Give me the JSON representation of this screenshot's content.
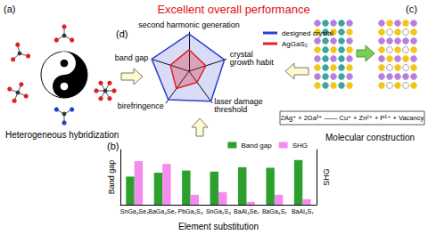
{
  "title": "Excellent overall performance",
  "panels": {
    "a": {
      "letter": "(a)",
      "caption": "Heterogeneous hybridization"
    },
    "b": {
      "letter": "(b)",
      "caption": "Element substitution"
    },
    "c": {
      "letter": "(c)",
      "caption": "Molecular construction",
      "equation": "2Ag⁺ + 2Ga³⁺ —— Cu⁺ + Zn²⁺ + P⁵⁺ + Vacancy"
    },
    "d": {
      "letter": "(d)"
    }
  },
  "chart_data": [
    {
      "type": "bar",
      "categories": [
        "SnGa₄Se₇",
        "BaGa₄Se₇",
        "PbGa₂S₄",
        "SnGa₂S₄",
        "BaAl₄Se₇",
        "BaGa₄S₇",
        "BaAl₄S₇"
      ],
      "series": [
        {
          "name": "Band gap",
          "color": "#2ca02c",
          "values": [
            51,
            58,
            62,
            60,
            68,
            67,
            81
          ]
        },
        {
          "name": "SHG",
          "color": "#f48cf0",
          "axis": "y2",
          "values": [
            79,
            74,
            18,
            23,
            5,
            18,
            10
          ]
        }
      ],
      "ylim": [
        0,
        100
      ],
      "y2lim": [
        0,
        100
      ],
      "ylabel": "Band gap",
      "y2label": "SHG",
      "tick_labels": "x",
      "grid": false,
      "legend": "upper right"
    },
    {
      "type": "radar",
      "categories": [
        "second harmonic generation",
        "band gap",
        "birefringence",
        "laser damage threshold",
        "crystal growth habit"
      ],
      "series": [
        {
          "name": "designed crystal",
          "color": "#2f3fd0",
          "values": [
            0.95,
            1,
            0.9,
            0.95,
            0.95
          ]
        },
        {
          "name": "AgGaS₂",
          "color": "#e0202a",
          "values": [
            0.55,
            0.5,
            0.55,
            0.35,
            0.45
          ]
        }
      ],
      "ylim": [
        0,
        1
      ],
      "tick_labels": false,
      "legend": "upper right"
    }
  ]
}
